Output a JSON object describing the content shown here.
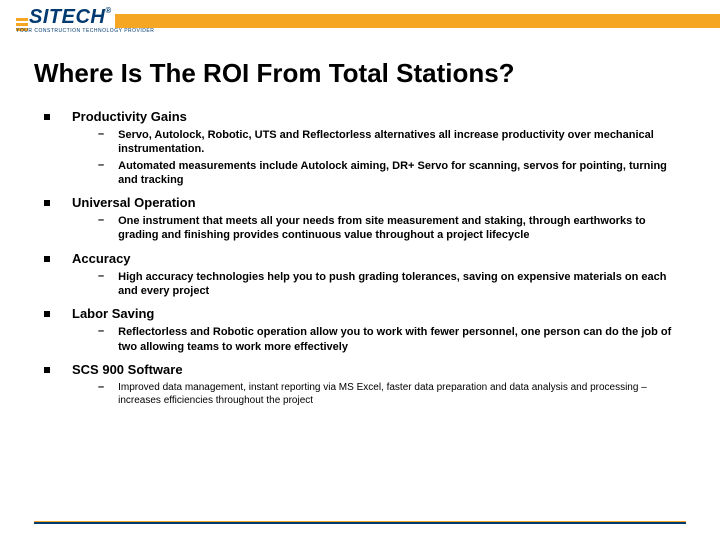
{
  "brand": {
    "name": "SITECH",
    "tagline": "YOUR CONSTRUCTION TECHNOLOGY PROVIDER",
    "logo_color": "#003a70",
    "accent_color": "#f5a623"
  },
  "slide": {
    "title": "Where Is The ROI From Total Stations?",
    "sections": [
      {
        "title": "Productivity Gains",
        "items": [
          "Servo, Autolock, Robotic, UTS and Reflectorless alternatives all increase productivity over mechanical instrumentation.",
          "Automated measurements include Autolock aiming, DR+ Servo for scanning, servos for pointing, turning and tracking"
        ],
        "small": false
      },
      {
        "title": "Universal Operation",
        "items": [
          "One instrument that meets all your needs from site measurement and staking, through earthworks to grading and finishing provides continuous value throughout a project lifecycle"
        ],
        "small": false
      },
      {
        "title": "Accuracy",
        "items": [
          "High accuracy technologies help you to push grading tolerances, saving on expensive materials on each and every project"
        ],
        "small": false
      },
      {
        "title": "Labor Saving",
        "items": [
          "Reflectorless and Robotic operation allow you to work with fewer personnel, one person can do the job of two allowing teams to work more effectively"
        ],
        "small": false
      },
      {
        "title": "SCS 900 Software",
        "items": [
          "Improved data management, instant reporting via MS Excel, faster data preparation and data analysis and processing – increases efficiencies throughout the project"
        ],
        "small": true
      }
    ]
  }
}
